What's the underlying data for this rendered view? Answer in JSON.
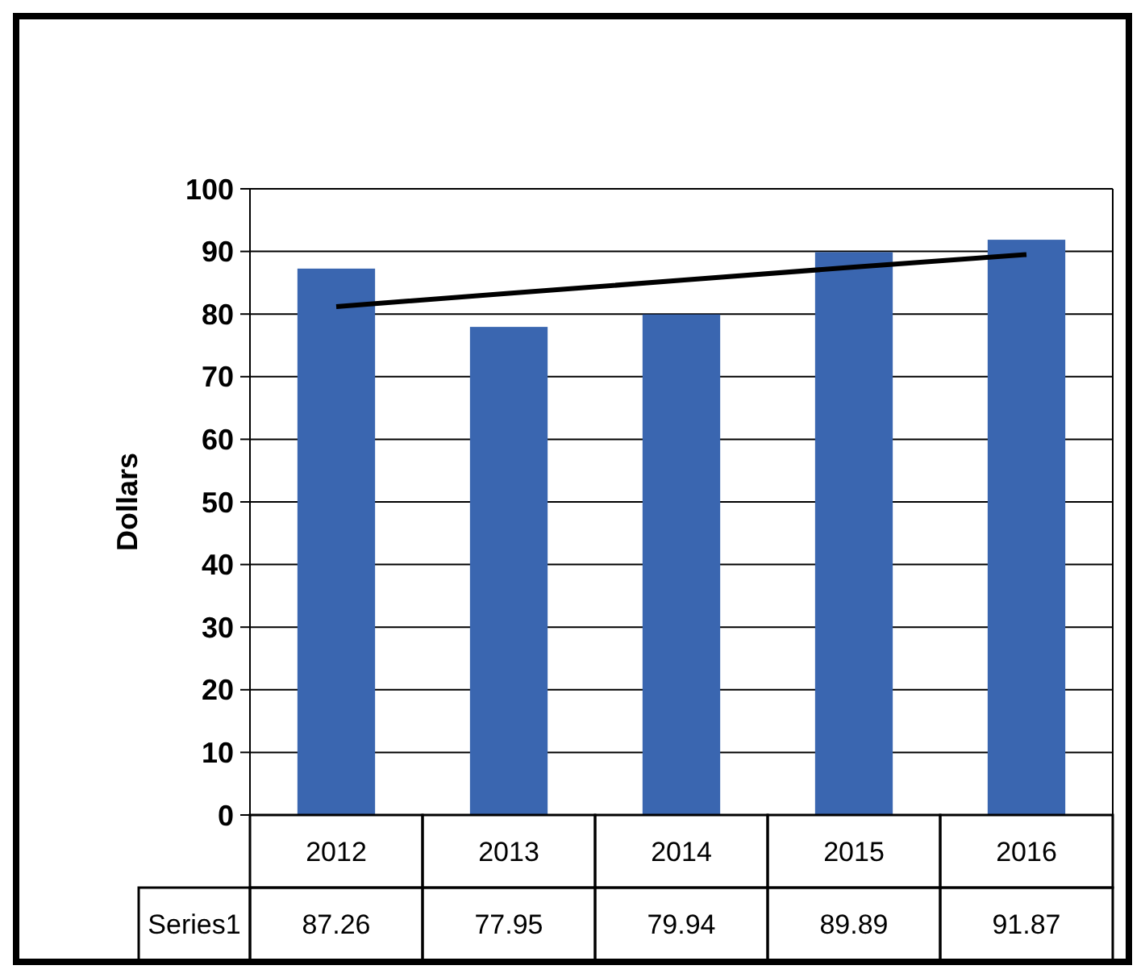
{
  "chart_data": {
    "type": "bar",
    "ylabel": "Dollars",
    "categories": [
      "2012",
      "2013",
      "2014",
      "2015",
      "2016"
    ],
    "series": [
      {
        "name": "Series1",
        "color": "#3a66b0",
        "values": [
          87.26,
          77.95,
          79.94,
          89.89,
          91.87
        ],
        "value_labels": [
          "87.26",
          "77.95",
          "79.94",
          "89.89",
          "91.87"
        ]
      },
      {
        "type": "line",
        "color": "#000000",
        "values": [
          81.2,
          83.3,
          85.4,
          87.5,
          89.5
        ]
      }
    ],
    "ylim": [
      0,
      100
    ],
    "yticks": [
      0,
      10,
      20,
      30,
      40,
      50,
      60,
      70,
      80,
      90,
      100
    ],
    "grid": "y"
  }
}
